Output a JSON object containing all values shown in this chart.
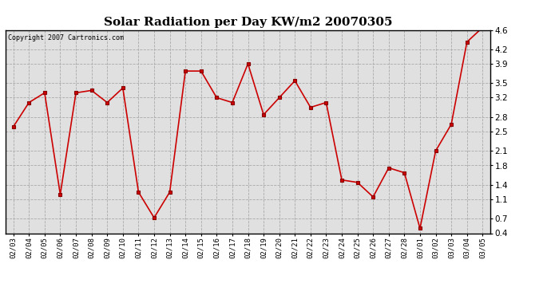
{
  "title": "Solar Radiation per Day KW/m2 20070305",
  "copyright": "Copyright 2007 Cartronics.com",
  "dates": [
    "02/03",
    "02/04",
    "02/05",
    "02/06",
    "02/07",
    "02/08",
    "02/09",
    "02/10",
    "02/11",
    "02/12",
    "02/13",
    "02/14",
    "02/15",
    "02/16",
    "02/17",
    "02/18",
    "02/19",
    "02/20",
    "02/21",
    "02/22",
    "02/23",
    "02/24",
    "02/25",
    "02/26",
    "02/27",
    "02/28",
    "03/01",
    "03/02",
    "03/03",
    "03/04",
    "03/05"
  ],
  "values": [
    2.6,
    3.1,
    3.3,
    1.2,
    3.3,
    3.35,
    3.1,
    3.4,
    1.25,
    0.72,
    1.25,
    3.75,
    3.75,
    3.2,
    3.1,
    3.9,
    2.85,
    3.2,
    3.55,
    3.0,
    3.1,
    1.5,
    1.45,
    1.15,
    1.75,
    1.65,
    0.5,
    2.1,
    2.65,
    4.35,
    4.65
  ],
  "ylim": [
    0.4,
    4.6
  ],
  "yticks": [
    0.4,
    0.7,
    1.1,
    1.4,
    1.8,
    2.1,
    2.5,
    2.8,
    3.2,
    3.5,
    3.9,
    4.2,
    4.6
  ],
  "line_color": "#cc0000",
  "marker": "s",
  "marker_color": "#cc0000",
  "marker_size": 2.5,
  "bg_color": "#ffffff",
  "plot_bg_color": "#e0e0e0",
  "grid_color": "#aaaaaa",
  "title_fontsize": 11,
  "copyright_fontsize": 6,
  "tick_fontsize": 6.5,
  "ytick_fontsize": 7.5
}
